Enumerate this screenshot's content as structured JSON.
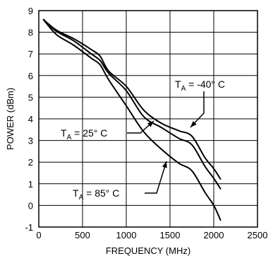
{
  "chart_data": {
    "type": "line",
    "title": "",
    "xlabel": "FREQUENCY (MHz)",
    "ylabel": "POWER (dBm)",
    "xlim": [
      0,
      2500
    ],
    "ylim": [
      -1,
      9
    ],
    "xticks": [
      "0",
      "500",
      "1000",
      "1500",
      "2000",
      "2500"
    ],
    "yticks": [
      "-1",
      "0",
      "1",
      "2",
      "3",
      "4",
      "5",
      "6",
      "7",
      "8",
      "9"
    ],
    "grid": true,
    "series": [
      {
        "name": "TA = -40° C",
        "label_main": "T",
        "label_sub": "A",
        "label_rest": " = -40° C",
        "x": [
          50,
          200,
          400,
          600,
          700,
          800,
          1000,
          1200,
          1400,
          1600,
          1750,
          1900,
          2000,
          2080
        ],
        "y": [
          8.6,
          8.1,
          7.7,
          7.2,
          6.9,
          6.2,
          5.5,
          4.4,
          3.8,
          3.45,
          3.2,
          2.2,
          1.7,
          1.2
        ]
      },
      {
        "name": "TA = 25° C",
        "label_main": "T",
        "label_sub": "A",
        "label_rest": " = 25° C",
        "x": [
          50,
          200,
          400,
          600,
          700,
          800,
          1000,
          1200,
          1400,
          1600,
          1750,
          1900,
          2000,
          2080
        ],
        "y": [
          8.6,
          8.05,
          7.6,
          7.0,
          6.7,
          6.1,
          5.3,
          4.1,
          3.6,
          3.1,
          2.8,
          1.8,
          1.25,
          0.75
        ]
      },
      {
        "name": "TA = 85° C",
        "label_main": "T",
        "label_sub": "A",
        "label_rest": " = 85° C",
        "x": [
          50,
          200,
          400,
          600,
          700,
          800,
          1000,
          1200,
          1400,
          1600,
          1750,
          1900,
          2000,
          2080
        ],
        "y": [
          8.6,
          7.9,
          7.4,
          6.8,
          6.5,
          5.8,
          4.6,
          3.4,
          2.6,
          1.95,
          1.6,
          0.6,
          0.0,
          -0.7
        ]
      }
    ]
  }
}
